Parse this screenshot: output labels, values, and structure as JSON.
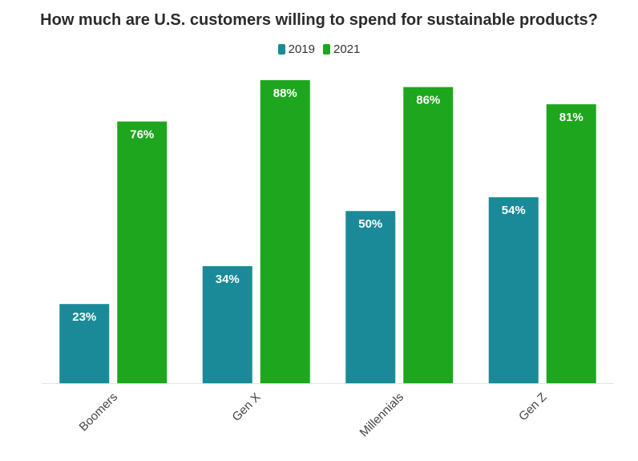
{
  "chart_data": {
    "type": "bar",
    "title": "How much are U.S. customers willing to spend for sustainable products?",
    "categories": [
      "Boomers",
      "Gen X",
      "Millennials",
      "Gen Z"
    ],
    "series": [
      {
        "name": "2019",
        "values": [
          23,
          34,
          50,
          54
        ],
        "color": "#1a8a98"
      },
      {
        "name": "2021",
        "values": [
          76,
          88,
          86,
          81
        ],
        "color": "#1ea61e"
      }
    ],
    "value_suffix": "%",
    "ylim": [
      0,
      88
    ],
    "grid": false,
    "legend_position": "top-center"
  }
}
